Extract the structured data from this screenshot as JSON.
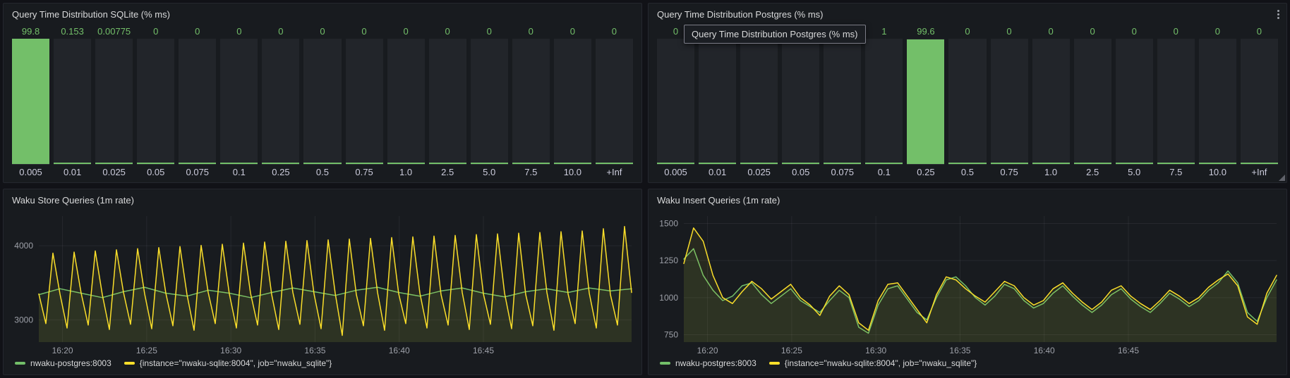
{
  "theme": {
    "green": "#73bf69",
    "yellow": "#fade2a",
    "panel_bg": "#181b1f",
    "page_bg": "#111217",
    "bar_track": "#22252a"
  },
  "tooltip": {
    "text": "Query Time Distribution Postgres (% ms)"
  },
  "chart_data": [
    {
      "type": "bar",
      "title": "Query Time Distribution SQLite (% ms)",
      "categories": [
        "0.005",
        "0.01",
        "0.025",
        "0.05",
        "0.075",
        "0.1",
        "0.25",
        "0.5",
        "0.75",
        "1.0",
        "2.5",
        "5.0",
        "7.5",
        "10.0",
        "+Inf"
      ],
      "values": [
        "99.8",
        "0.153",
        "0.00775",
        "0",
        "0",
        "0",
        "0",
        "0",
        "0",
        "0",
        "0",
        "0",
        "0",
        "0",
        "0"
      ],
      "bar_color": "#73bf69",
      "ylim": [
        0,
        100
      ]
    },
    {
      "type": "bar",
      "title": "Query Time Distribution Postgres (% ms)",
      "categories": [
        "0.005",
        "0.01",
        "0.025",
        "0.05",
        "0.075",
        "0.1",
        "0.25",
        "0.5",
        "0.75",
        "1.0",
        "2.5",
        "5.0",
        "7.5",
        "10.0",
        "+Inf"
      ],
      "values": [
        "0",
        "",
        "",
        "",
        "",
        "1",
        "99.6",
        "0",
        "0",
        "0",
        "0",
        "0",
        "0",
        "0",
        "0"
      ],
      "bar_color": "#73bf69",
      "ylim": [
        0,
        100
      ]
    },
    {
      "type": "line",
      "title": "Waku Store Queries (1m rate)",
      "ylim": [
        2700,
        4400
      ],
      "yticks": [
        3000,
        4000
      ],
      "xticks": [
        {
          "pos": 0.04,
          "label": "16:20"
        },
        {
          "pos": 0.182,
          "label": "16:25"
        },
        {
          "pos": 0.324,
          "label": "16:30"
        },
        {
          "pos": 0.466,
          "label": "16:35"
        },
        {
          "pos": 0.608,
          "label": "16:40"
        },
        {
          "pos": 0.75,
          "label": "16:45"
        }
      ],
      "series": [
        {
          "name": "nwaku-postgres:8003",
          "color": "#73bf69",
          "values": [
            3340,
            3420,
            3360,
            3300,
            3380,
            3440,
            3360,
            3320,
            3400,
            3360,
            3300,
            3370,
            3430,
            3380,
            3330,
            3400,
            3440,
            3370,
            3320,
            3390,
            3430,
            3360,
            3310,
            3380,
            3420,
            3370,
            3430,
            3390,
            3420
          ]
        },
        {
          "name": "{instance=\"nwaku-sqlite:8004\", job=\"nwaku_sqlite\"}",
          "color": "#fade2a",
          "values": [
            3350,
            2950,
            3900,
            3350,
            2890,
            3915,
            3360,
            2930,
            3930,
            3340,
            2870,
            3945,
            3370,
            2940,
            3960,
            3350,
            2880,
            3975,
            3360,
            2920,
            3990,
            3340,
            2860,
            4005,
            3370,
            2950,
            4020,
            3350,
            2890,
            4035,
            3360,
            2930,
            4050,
            3340,
            2870,
            4060,
            3370,
            2940,
            4070,
            3350,
            2880,
            4080,
            3360,
            2790,
            4090,
            3340,
            2920,
            4100,
            3370,
            2860,
            4110,
            3350,
            2950,
            4120,
            3360,
            2890,
            4130,
            3340,
            2930,
            4140,
            3370,
            2870,
            4150,
            3350,
            2940,
            4160,
            3360,
            2880,
            4170,
            3340,
            2920,
            4180,
            3370,
            2860,
            4190,
            3350,
            2950,
            4200,
            3360,
            2890,
            4230,
            3340,
            2930,
            4260,
            3370
          ]
        }
      ]
    },
    {
      "type": "line",
      "title": "Waku Insert Queries (1m rate)",
      "ylim": [
        700,
        1550
      ],
      "yticks": [
        750,
        1000,
        1250,
        1500
      ],
      "xticks": [
        {
          "pos": 0.04,
          "label": "16:20"
        },
        {
          "pos": 0.182,
          "label": "16:25"
        },
        {
          "pos": 0.324,
          "label": "16:30"
        },
        {
          "pos": 0.466,
          "label": "16:35"
        },
        {
          "pos": 0.608,
          "label": "16:40"
        },
        {
          "pos": 0.75,
          "label": "16:45"
        }
      ],
      "series": [
        {
          "name": "nwaku-postgres:8003",
          "color": "#73bf69",
          "values": [
            1260,
            1330,
            1150,
            1050,
            980,
            1010,
            1080,
            1100,
            1020,
            960,
            1010,
            1060,
            980,
            940,
            900,
            980,
            1050,
            1000,
            800,
            760,
            950,
            1060,
            1080,
            990,
            900,
            850,
            1000,
            1120,
            1140,
            1080,
            1000,
            950,
            1010,
            1090,
            1060,
            980,
            930,
            960,
            1030,
            1080,
            1010,
            950,
            900,
            950,
            1020,
            1060,
            990,
            940,
            900,
            960,
            1030,
            990,
            940,
            980,
            1050,
            1100,
            1180,
            1100,
            900,
            840,
            1000,
            1120
          ]
        },
        {
          "name": "{instance=\"nwaku-sqlite:8004\", job=\"nwaku_sqlite\"}",
          "color": "#fade2a",
          "values": [
            1230,
            1470,
            1380,
            1150,
            1000,
            960,
            1040,
            1110,
            1060,
            990,
            1040,
            1090,
            1000,
            950,
            880,
            1010,
            1080,
            1020,
            830,
            780,
            980,
            1090,
            1100,
            1010,
            920,
            830,
            1020,
            1140,
            1120,
            1060,
            1010,
            970,
            1040,
            1110,
            1080,
            1000,
            950,
            980,
            1060,
            1100,
            1030,
            970,
            920,
            970,
            1050,
            1080,
            1010,
            960,
            920,
            980,
            1050,
            1010,
            960,
            1000,
            1070,
            1120,
            1160,
            1080,
            870,
            820,
            1030,
            1150
          ]
        }
      ]
    }
  ]
}
